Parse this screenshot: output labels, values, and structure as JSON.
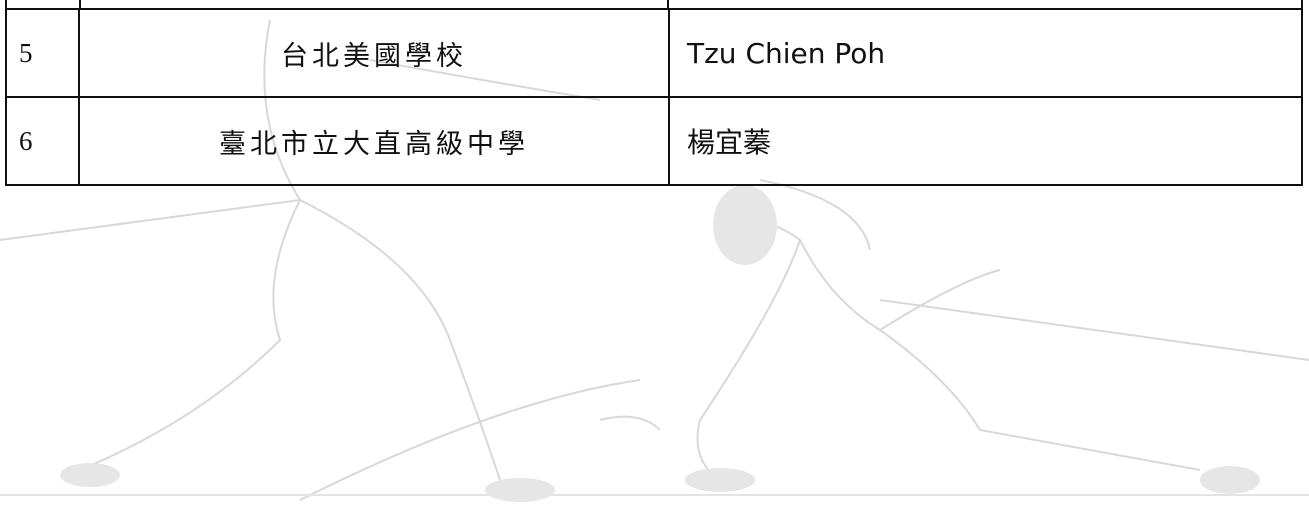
{
  "table": {
    "rows": [
      [
        "5",
        "台北美國學校",
        "Tzu Chien Poh"
      ],
      [
        "6",
        "臺北市立大直高級中學",
        "楊宜蓁"
      ]
    ]
  }
}
